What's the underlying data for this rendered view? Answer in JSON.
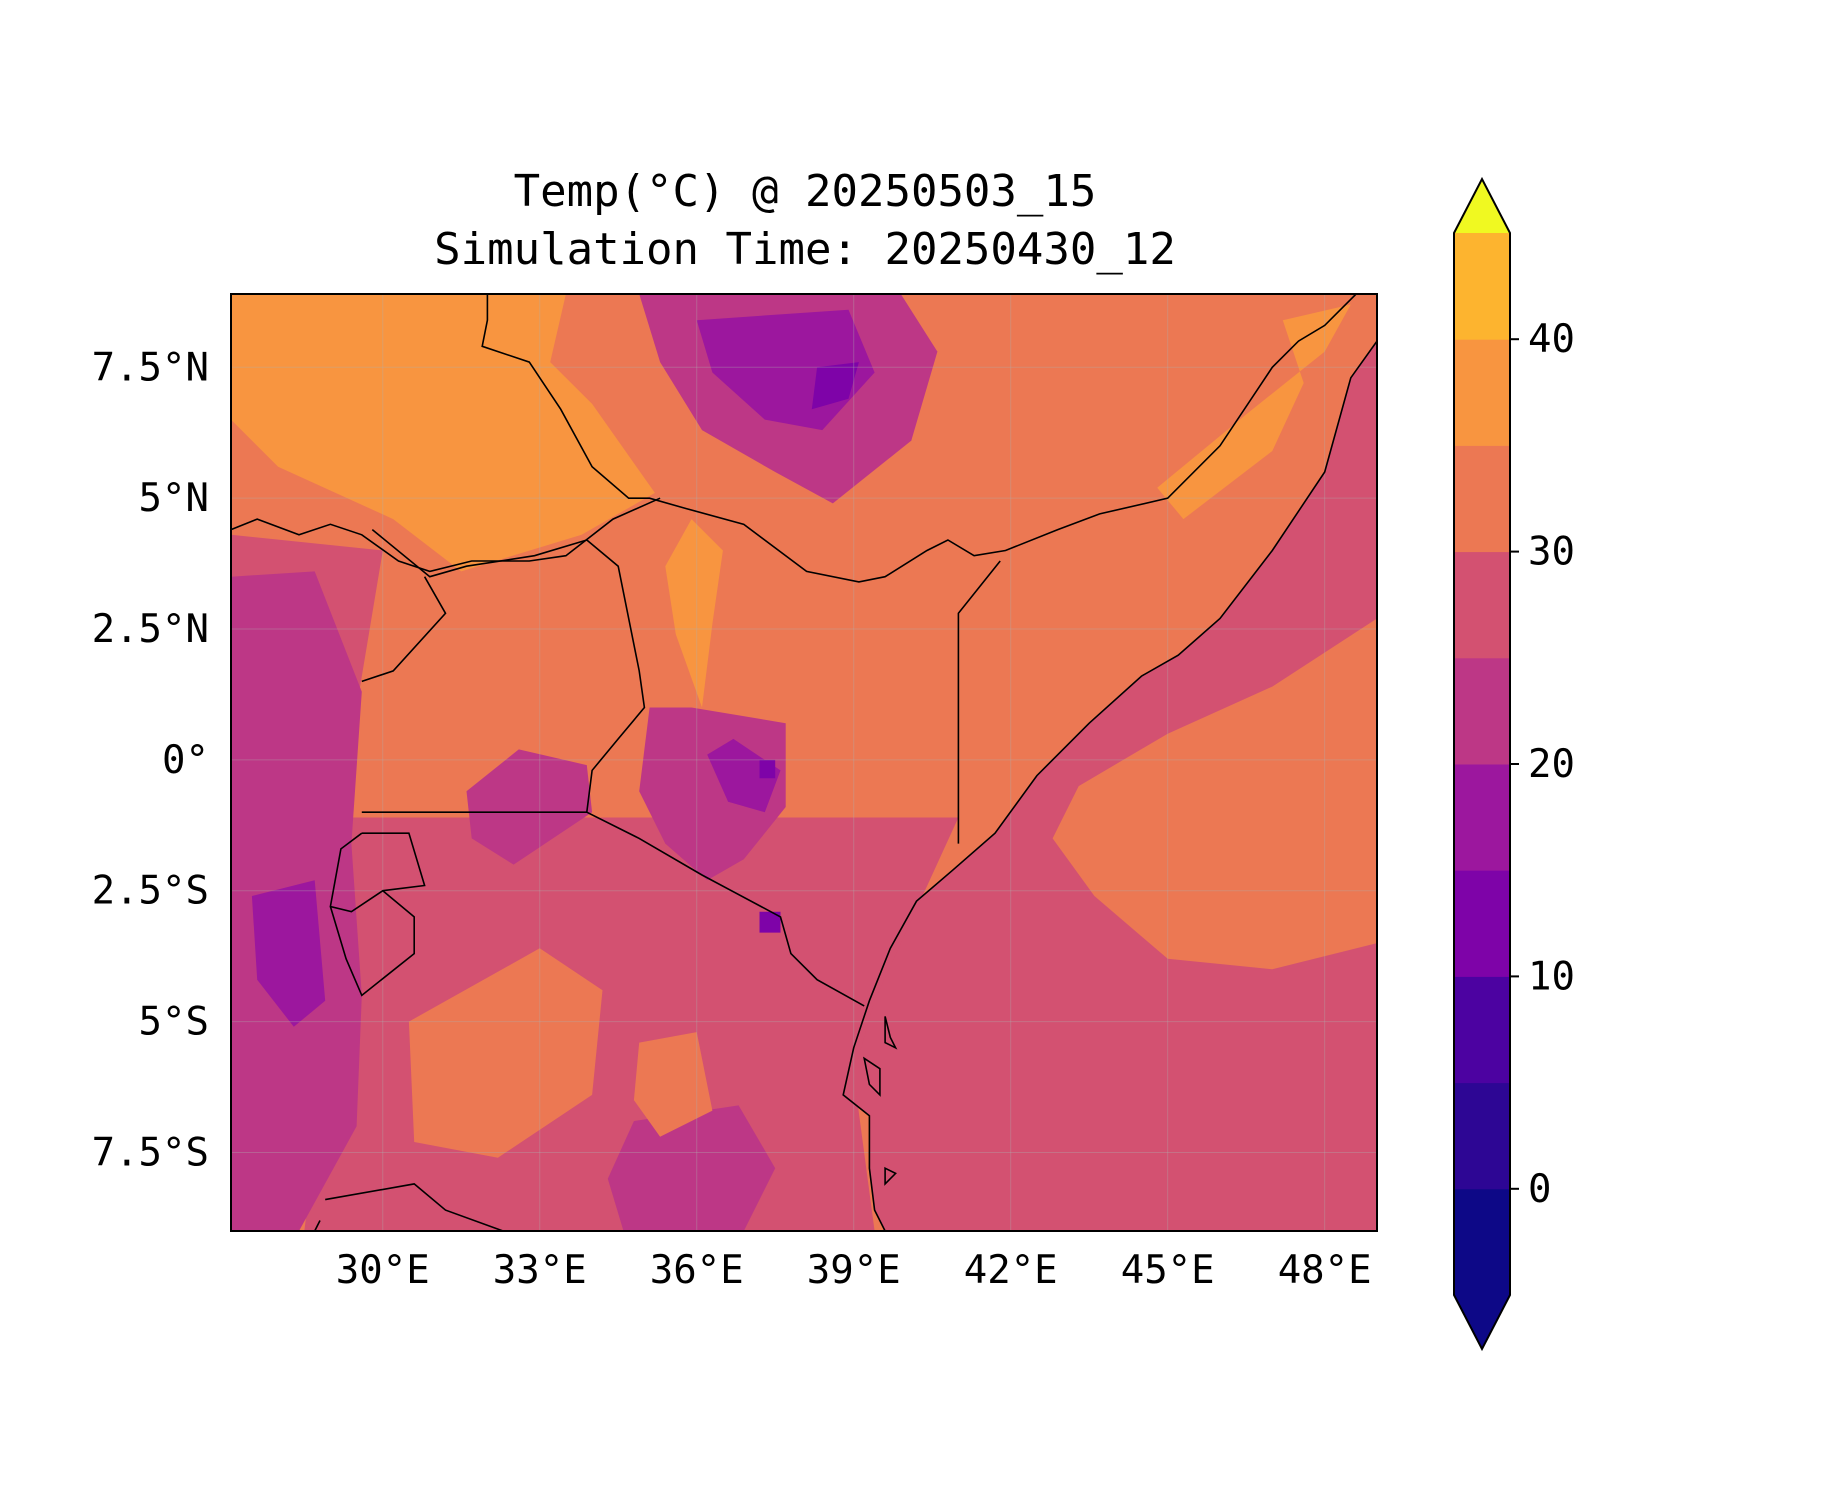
{
  "title": {
    "line1": "Temp(°C) @ 20250503_15",
    "line2": "Simulation Time: 20250430_12"
  },
  "map": {
    "lon_range": [
      27.1,
      49.0
    ],
    "lat_range": [
      -9.0,
      8.9
    ],
    "lon_ticks": [
      {
        "value": 30,
        "label": "30°E"
      },
      {
        "value": 33,
        "label": "33°E"
      },
      {
        "value": 36,
        "label": "36°E"
      },
      {
        "value": 39,
        "label": "39°E"
      },
      {
        "value": 42,
        "label": "42°E"
      },
      {
        "value": 45,
        "label": "45°E"
      },
      {
        "value": 48,
        "label": "48°E"
      }
    ],
    "lat_ticks": [
      {
        "value": 7.5,
        "label": "7.5°N"
      },
      {
        "value": 5,
        "label": "5°N"
      },
      {
        "value": 2.5,
        "label": "2.5°N"
      },
      {
        "value": 0,
        "label": "0°"
      },
      {
        "value": -2.5,
        "label": "2.5°S"
      },
      {
        "value": -5,
        "label": "5°S"
      },
      {
        "value": -7.5,
        "label": "7.5°S"
      }
    ],
    "gridlines": true,
    "field_regions": [
      {
        "name": "sudan-hot-plain",
        "level": 37.5,
        "points": [
          [
            27.1,
            8.9
          ],
          [
            33.5,
            8.9
          ],
          [
            33.2,
            7.6
          ],
          [
            34.0,
            6.8
          ],
          [
            35.2,
            5.1
          ],
          [
            33.8,
            4.3
          ],
          [
            31.5,
            3.6
          ],
          [
            30.2,
            4.6
          ],
          [
            28.0,
            5.6
          ],
          [
            27.1,
            6.5
          ]
        ]
      },
      {
        "name": "somalia-hot-east",
        "level": 37.5,
        "points": [
          [
            44.8,
            5.2
          ],
          [
            46.5,
            6.6
          ],
          [
            48.0,
            7.8
          ],
          [
            48.5,
            8.7
          ],
          [
            47.2,
            8.4
          ],
          [
            47.6,
            7.2
          ],
          [
            47.0,
            5.9
          ],
          [
            45.3,
            4.6
          ]
        ]
      },
      {
        "name": "kenya-north-hot",
        "level": 37.5,
        "points": [
          [
            35.9,
            4.6
          ],
          [
            36.5,
            4.0
          ],
          [
            36.3,
            2.6
          ],
          [
            36.1,
            1.0
          ],
          [
            35.6,
            2.4
          ],
          [
            35.4,
            3.7
          ]
        ]
      },
      {
        "name": "ethiopia-highlands-mid",
        "level": 22.5,
        "points": [
          [
            34.9,
            8.9
          ],
          [
            39.9,
            8.9
          ],
          [
            40.6,
            7.8
          ],
          [
            40.1,
            6.1
          ],
          [
            38.6,
            4.9
          ],
          [
            37.5,
            5.5
          ],
          [
            36.1,
            6.3
          ],
          [
            35.3,
            7.6
          ]
        ]
      },
      {
        "name": "ethiopia-highlands-cool",
        "level": 17.5,
        "points": [
          [
            36.0,
            8.4
          ],
          [
            38.9,
            8.6
          ],
          [
            39.4,
            7.4
          ],
          [
            38.4,
            6.3
          ],
          [
            37.3,
            6.5
          ],
          [
            36.3,
            7.4
          ]
        ]
      },
      {
        "name": "ethiopia-peak-cold",
        "level": 12.5,
        "points": [
          [
            38.3,
            7.5
          ],
          [
            39.1,
            7.6
          ],
          [
            38.9,
            6.9
          ],
          [
            38.2,
            6.7
          ]
        ]
      },
      {
        "name": "kenya-highlands-mid",
        "level": 22.5,
        "points": [
          [
            35.1,
            1.0
          ],
          [
            35.9,
            1.0
          ],
          [
            37.7,
            0.7
          ],
          [
            37.7,
            -0.9
          ],
          [
            36.9,
            -1.9
          ],
          [
            36.2,
            -2.3
          ],
          [
            35.4,
            -1.6
          ],
          [
            34.9,
            -0.6
          ]
        ]
      },
      {
        "name": "kenya-highlands-cool",
        "level": 17.5,
        "points": [
          [
            36.2,
            0.1
          ],
          [
            36.7,
            0.4
          ],
          [
            37.6,
            -0.2
          ],
          [
            37.3,
            -1.0
          ],
          [
            36.6,
            -0.8
          ]
        ]
      },
      {
        "name": "mt-kenya-cold",
        "level": 12.5,
        "points": [
          [
            37.2,
            0.0
          ],
          [
            37.5,
            0.0
          ],
          [
            37.5,
            -0.35
          ],
          [
            37.2,
            -0.35
          ]
        ]
      },
      {
        "name": "kilimanjaro-cold",
        "level": 12.5,
        "points": [
          [
            37.2,
            -2.9
          ],
          [
            37.6,
            -2.9
          ],
          [
            37.6,
            -3.3
          ],
          [
            37.2,
            -3.3
          ]
        ]
      },
      {
        "name": "rift-west-mid",
        "level": 22.5,
        "points": [
          [
            27.1,
            3.5
          ],
          [
            28.7,
            3.6
          ],
          [
            29.6,
            1.3
          ],
          [
            29.4,
            -1.6
          ],
          [
            29.6,
            -4.5
          ],
          [
            29.5,
            -7.0
          ],
          [
            28.4,
            -9.0
          ],
          [
            27.1,
            -9.0
          ]
        ]
      },
      {
        "name": "rift-west-cool",
        "level": 17.5,
        "points": [
          [
            27.5,
            -2.6
          ],
          [
            28.7,
            -2.3
          ],
          [
            28.9,
            -4.6
          ],
          [
            28.3,
            -5.1
          ],
          [
            27.6,
            -4.2
          ]
        ]
      },
      {
        "name": "southern-highlands-mid",
        "level": 22.5,
        "points": [
          [
            34.8,
            -6.9
          ],
          [
            36.8,
            -6.6
          ],
          [
            37.5,
            -7.8
          ],
          [
            36.9,
            -9.0
          ],
          [
            34.6,
            -9.0
          ],
          [
            34.3,
            -8.0
          ]
        ]
      },
      {
        "name": "tanzania-warm-patch-1",
        "level": 32.5,
        "points": [
          [
            30.5,
            -5.0
          ],
          [
            33.0,
            -3.6
          ],
          [
            34.2,
            -4.4
          ],
          [
            34.0,
            -6.4
          ],
          [
            32.2,
            -7.6
          ],
          [
            30.6,
            -7.3
          ]
        ]
      },
      {
        "name": "tanzania-warm-patch-2",
        "level": 32.5,
        "points": [
          [
            34.9,
            -5.4
          ],
          [
            36.0,
            -5.2
          ],
          [
            36.3,
            -6.7
          ],
          [
            35.3,
            -7.2
          ],
          [
            34.8,
            -6.5
          ]
        ]
      },
      {
        "name": "somali-sea-warm",
        "level": 32.5,
        "points": [
          [
            43.3,
            -0.5
          ],
          [
            45.0,
            0.5
          ],
          [
            47.0,
            1.4
          ],
          [
            49.0,
            2.7
          ],
          [
            49.0,
            -3.5
          ],
          [
            47.0,
            -4.0
          ],
          [
            45.0,
            -3.8
          ],
          [
            43.6,
            -2.6
          ],
          [
            42.8,
            -1.5
          ]
        ]
      },
      {
        "name": "lake-victoria-cool",
        "level": 22.5,
        "points": [
          [
            31.6,
            -0.6
          ],
          [
            32.6,
            0.2
          ],
          [
            33.9,
            -0.1
          ],
          [
            34.0,
            -1.0
          ],
          [
            32.5,
            -2.0
          ],
          [
            31.7,
            -1.5
          ]
        ]
      }
    ],
    "country_borders": [
      [
        [
          27.1,
          4.4
        ],
        [
          27.6,
          4.6
        ],
        [
          28.4,
          4.3
        ],
        [
          29.0,
          4.5
        ],
        [
          29.6,
          4.3
        ],
        [
          30.3,
          3.8
        ],
        [
          30.9,
          3.6
        ],
        [
          31.7,
          3.8
        ],
        [
          32.8,
          3.8
        ],
        [
          33.5,
          3.9
        ],
        [
          34.4,
          4.6
        ],
        [
          35.3,
          5.0
        ]
      ],
      [
        [
          32.0,
          8.9
        ],
        [
          32.0,
          8.4
        ],
        [
          31.9,
          7.9
        ],
        [
          32.8,
          7.6
        ],
        [
          33.4,
          6.7
        ],
        [
          34.0,
          5.6
        ],
        [
          34.7,
          5.0
        ],
        [
          35.1,
          5.0
        ],
        [
          35.8,
          4.8
        ],
        [
          36.9,
          4.5
        ],
        [
          38.1,
          3.6
        ],
        [
          39.1,
          3.4
        ],
        [
          39.6,
          3.5
        ],
        [
          40.4,
          4.0
        ],
        [
          40.8,
          4.2
        ],
        [
          41.3,
          3.9
        ],
        [
          41.9,
          4.0
        ],
        [
          42.9,
          4.4
        ],
        [
          43.7,
          4.7
        ],
        [
          45.0,
          5.0
        ],
        [
          46.0,
          6.0
        ],
        [
          47.0,
          7.5
        ],
        [
          47.5,
          8.0
        ],
        [
          48.0,
          8.3
        ],
        [
          48.6,
          8.9
        ]
      ],
      [
        [
          41.0,
          -1.6
        ],
        [
          41.0,
          -0.9
        ],
        [
          41.0,
          2.8
        ],
        [
          41.8,
          3.8
        ]
      ],
      [
        [
          33.9,
          4.2
        ],
        [
          34.5,
          3.7
        ],
        [
          34.9,
          1.7
        ],
        [
          35.0,
          1.0
        ],
        [
          34.5,
          0.4
        ],
        [
          34.0,
          -0.2
        ],
        [
          33.9,
          -1.0
        ],
        [
          34.9,
          -1.5
        ],
        [
          36.1,
          -2.2
        ],
        [
          37.6,
          -3.0
        ],
        [
          37.8,
          -3.7
        ],
        [
          38.3,
          -4.2
        ],
        [
          39.2,
          -4.7
        ]
      ],
      [
        [
          29.8,
          4.4
        ],
        [
          30.9,
          3.5
        ],
        [
          31.6,
          3.7
        ],
        [
          32.9,
          3.9
        ],
        [
          33.9,
          4.2
        ]
      ],
      [
        [
          29.6,
          -1.0
        ],
        [
          30.3,
          -1.0
        ],
        [
          33.9,
          -1.0
        ]
      ],
      [
        [
          29.6,
          -1.4
        ],
        [
          29.2,
          -1.7
        ],
        [
          29.0,
          -2.8
        ],
        [
          29.4,
          -2.9
        ],
        [
          30.0,
          -2.5
        ],
        [
          30.8,
          -2.4
        ],
        [
          30.5,
          -1.4
        ],
        [
          29.6,
          -1.4
        ]
      ],
      [
        [
          29.0,
          -2.8
        ],
        [
          29.3,
          -3.8
        ],
        [
          29.6,
          -4.5
        ],
        [
          30.6,
          -3.7
        ],
        [
          30.6,
          -3.0
        ],
        [
          30.0,
          -2.5
        ]
      ],
      [
        [
          28.9,
          -8.4
        ],
        [
          30.6,
          -8.1
        ],
        [
          31.2,
          -8.6
        ],
        [
          32.3,
          -9.0
        ]
      ],
      [
        [
          28.8,
          -8.8
        ],
        [
          28.7,
          -9.0
        ]
      ],
      [
        [
          29.6,
          1.5
        ],
        [
          30.2,
          1.7
        ],
        [
          31.2,
          2.8
        ],
        [
          30.8,
          3.5
        ]
      ]
    ],
    "coastline": [
      [
        49.0,
        8.0
      ],
      [
        48.5,
        7.3
      ],
      [
        48.0,
        5.5
      ],
      [
        47.0,
        4.0
      ],
      [
        46.0,
        2.7
      ],
      [
        45.2,
        2.0
      ],
      [
        44.5,
        1.6
      ],
      [
        43.5,
        0.7
      ],
      [
        42.5,
        -0.3
      ],
      [
        41.7,
        -1.4
      ],
      [
        40.9,
        -2.1
      ],
      [
        40.2,
        -2.7
      ],
      [
        39.7,
        -3.6
      ],
      [
        39.3,
        -4.6
      ],
      [
        39.0,
        -5.5
      ],
      [
        38.8,
        -6.4
      ],
      [
        39.3,
        -6.8
      ],
      [
        39.3,
        -7.8
      ],
      [
        39.4,
        -8.6
      ],
      [
        39.6,
        -9.0
      ]
    ],
    "islands": [
      [
        [
          39.6,
          -4.9
        ],
        [
          39.7,
          -5.3
        ],
        [
          39.8,
          -5.5
        ],
        [
          39.6,
          -5.4
        ]
      ],
      [
        [
          39.2,
          -5.7
        ],
        [
          39.5,
          -5.9
        ],
        [
          39.5,
          -6.4
        ],
        [
          39.3,
          -6.2
        ]
      ],
      [
        [
          39.6,
          -7.8
        ],
        [
          39.8,
          -7.9
        ],
        [
          39.6,
          -8.1
        ]
      ]
    ]
  },
  "colorbar": {
    "levels": [
      -5,
      0,
      5,
      10,
      15,
      20,
      25,
      30,
      35,
      40,
      45
    ],
    "colors": [
      "#0d0887",
      "#2d0694",
      "#4c02a1",
      "#7e03a8",
      "#9c179e",
      "#bd3786",
      "#d35171",
      "#ec7853",
      "#f89540",
      "#fdb42f",
      "#f0f921"
    ],
    "ticks": [
      {
        "value": 0,
        "label": "0"
      },
      {
        "value": 10,
        "label": "10"
      },
      {
        "value": 20,
        "label": "20"
      },
      {
        "value": 30,
        "label": "30"
      },
      {
        "value": 40,
        "label": "40"
      }
    ],
    "extend": "both"
  },
  "colors": {
    "border": "#000000",
    "background": "#ffffff"
  }
}
